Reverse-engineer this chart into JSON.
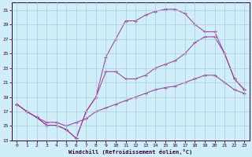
{
  "xlabel": "Windchill (Refroidissement éolien,°C)",
  "xlim": [
    -0.5,
    23.5
  ],
  "ylim": [
    13,
    32
  ],
  "yticks": [
    13,
    15,
    17,
    19,
    21,
    23,
    25,
    27,
    29,
    31
  ],
  "xticks": [
    0,
    1,
    2,
    3,
    4,
    5,
    6,
    7,
    8,
    9,
    10,
    11,
    12,
    13,
    14,
    15,
    16,
    17,
    18,
    19,
    20,
    21,
    22,
    23
  ],
  "line_color": "#993399",
  "bg_color": "#d0eef8",
  "grid_color": "#b0c8d8",
  "line1_x": [
    0,
    1,
    2,
    3,
    4,
    5,
    6,
    7,
    8,
    9,
    10,
    11,
    12,
    13,
    14,
    15,
    16,
    17,
    18,
    19,
    20,
    21,
    22,
    23
  ],
  "line1_y": [
    18.0,
    17.0,
    16.2,
    15.1,
    15.1,
    14.5,
    13.3,
    17.0,
    19.0,
    24.5,
    27.0,
    29.5,
    29.5,
    30.3,
    30.8,
    31.1,
    31.1,
    30.5,
    29.0,
    28.0,
    28.0,
    25.0,
    21.5,
    20.0
  ],
  "line2_x": [
    0,
    1,
    2,
    3,
    4,
    5,
    6,
    7,
    8,
    9,
    10,
    11,
    12,
    13,
    14,
    15,
    16,
    17,
    18,
    19,
    20,
    21,
    22,
    23
  ],
  "line2_y": [
    18.0,
    17.0,
    16.2,
    15.1,
    15.1,
    14.5,
    13.3,
    17.0,
    19.0,
    22.5,
    22.5,
    21.5,
    21.5,
    22.0,
    23.0,
    23.5,
    24.0,
    25.0,
    26.5,
    27.3,
    27.3,
    25.0,
    21.5,
    20.0
  ],
  "line3_x": [
    0,
    1,
    2,
    3,
    4,
    5,
    6,
    7,
    8,
    9,
    10,
    11,
    12,
    13,
    14,
    15,
    16,
    17,
    18,
    19,
    20,
    21,
    22,
    23
  ],
  "line3_y": [
    18.0,
    17.0,
    16.2,
    15.5,
    15.5,
    15.0,
    15.5,
    16.0,
    17.0,
    17.5,
    18.0,
    18.5,
    19.0,
    19.5,
    20.0,
    20.3,
    20.5,
    21.0,
    21.5,
    22.0,
    22.0,
    21.0,
    20.0,
    19.5
  ]
}
